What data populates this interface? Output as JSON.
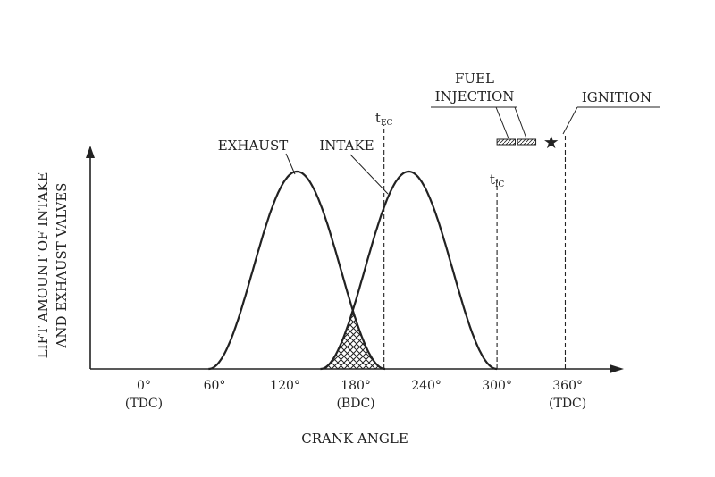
{
  "y_axis_label": [
    "LIFT AMOUNT OF INTAKE",
    "AND EXHAUST VALVES"
  ],
  "x_axis_label": "CRANK ANGLE",
  "x_ticks": [
    {
      "value": 0,
      "label": "0°",
      "sublabel": "(TDC)"
    },
    {
      "value": 60,
      "label": "60°",
      "sublabel": ""
    },
    {
      "value": 120,
      "label": "120°",
      "sublabel": ""
    },
    {
      "value": 180,
      "label": "180°",
      "sublabel": "(BDC)"
    },
    {
      "value": 240,
      "label": "240°",
      "sublabel": ""
    },
    {
      "value": 300,
      "label": "300°",
      "sublabel": ""
    },
    {
      "value": 360,
      "label": "360°",
      "sublabel": "(TDC)"
    }
  ],
  "curves": {
    "exhaust": {
      "label": "EXHAUST",
      "start": 55,
      "end": 205,
      "peak": 130
    },
    "intake": {
      "label": "INTAKE",
      "start": 150,
      "end": 300,
      "peak": 225
    }
  },
  "markers": {
    "t_ec": {
      "main": "t",
      "sub": "EC",
      "angle": 204
    },
    "t_ic": {
      "main": "t",
      "sub": "IC",
      "angle": 300
    }
  },
  "fuel_injection": {
    "label_line1": "FUEL",
    "label_line2": "INJECTION",
    "start": 300,
    "end": 333
  },
  "ignition": {
    "label": "IGNITION",
    "angle": 346,
    "symbol": "★"
  }
}
